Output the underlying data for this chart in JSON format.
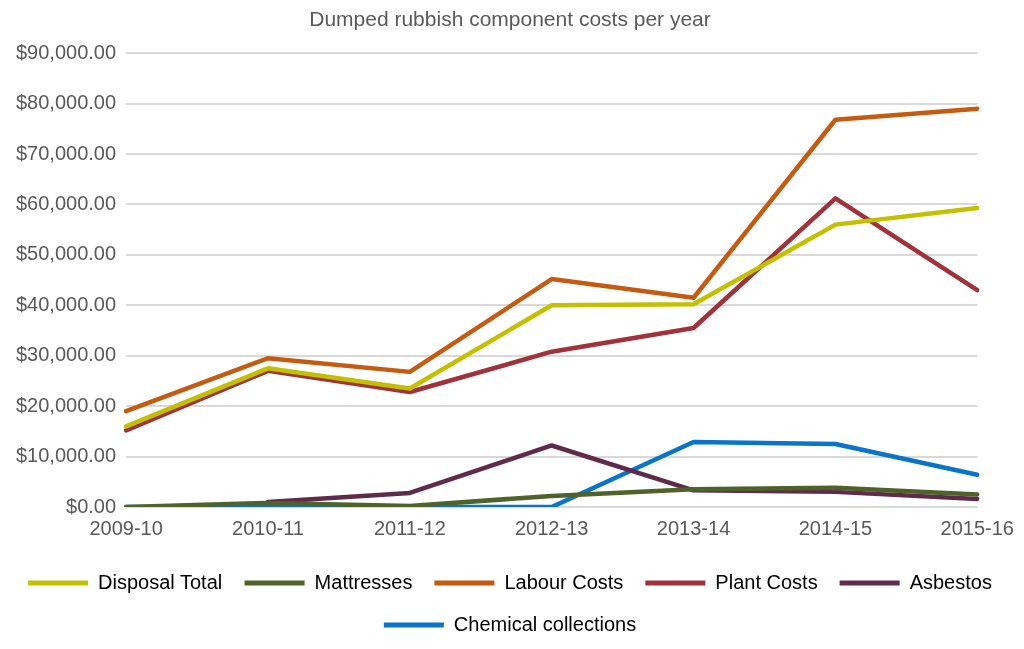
{
  "chart_data": {
    "type": "line",
    "title": "Dumped rubbish component costs per year",
    "categories": [
      "2009-10",
      "2010-11",
      "2011-12",
      "2012-13",
      "2013-14",
      "2014-15",
      "2015-16"
    ],
    "series": [
      {
        "name": "Disposal Total",
        "color": "#c3c000",
        "values": [
          16000,
          27500,
          23500,
          40000,
          40200,
          56000,
          59300
        ]
      },
      {
        "name": "Mattresses",
        "color": "#4f6228",
        "values": [
          0,
          800,
          200,
          2200,
          3500,
          3800,
          2500
        ]
      },
      {
        "name": "Labour Costs",
        "color": "#c55a11",
        "values": [
          19000,
          29500,
          26800,
          45200,
          41500,
          76800,
          79000
        ]
      },
      {
        "name": "Plant Costs",
        "color": "#a1313a",
        "values": [
          15200,
          27000,
          22800,
          30800,
          35500,
          61200,
          43000
        ]
      },
      {
        "name": "Asbestos",
        "color": "#5f2a4c",
        "values": [
          null,
          1000,
          2800,
          12200,
          3300,
          3000,
          1600
        ]
      },
      {
        "name": "Chemical collections",
        "color": "#0a74c8",
        "values": [
          0,
          0,
          0,
          0,
          12900,
          12500,
          6400
        ]
      }
    ],
    "ylim": [
      0,
      90000
    ],
    "yticks": [
      {
        "value": 0,
        "label": "$0.00"
      },
      {
        "value": 10000,
        "label": "$10,000.00"
      },
      {
        "value": 20000,
        "label": "$20,000.00"
      },
      {
        "value": 30000,
        "label": "$30,000.00"
      },
      {
        "value": 40000,
        "label": "$40,000.00"
      },
      {
        "value": 50000,
        "label": "$50,000.00"
      },
      {
        "value": 60000,
        "label": "$60,000.00"
      },
      {
        "value": 70000,
        "label": "$70,000.00"
      },
      {
        "value": 80000,
        "label": "$80,000.00"
      },
      {
        "value": 90000,
        "label": "$90,000.00"
      }
    ],
    "grid": "y",
    "legend": "bottom",
    "marker": "none",
    "line_style": "solid"
  }
}
